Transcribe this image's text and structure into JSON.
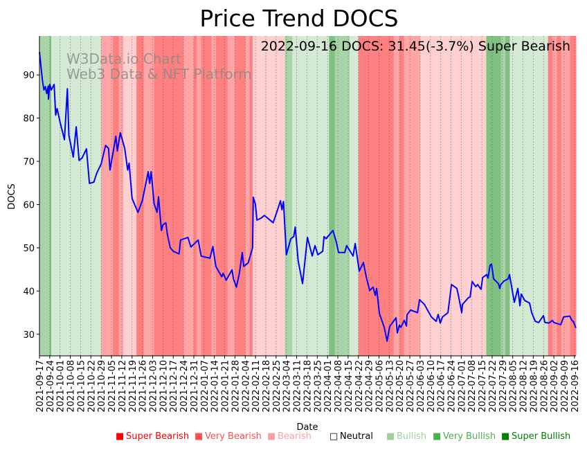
{
  "chart_data": {
    "type": "line",
    "title": "Price Trend DOCS",
    "annotation": "2022-09-16 DOCS: 31.45(-3.7%) Super Bearish",
    "watermark": [
      "W3Data.io Chart",
      "Web3 Data & NFT Platform"
    ],
    "xlabel": "Date",
    "ylabel": "DOCS",
    "ylim": [
      25,
      99
    ],
    "xlim_days": [
      0,
      365
    ],
    "x_start_date": "2021-09-17",
    "yticks": [
      30,
      40,
      50,
      60,
      70,
      80,
      90
    ],
    "xtick_labels": [
      "2021-09-17",
      "2021-09-24",
      "2021-10-01",
      "2021-10-08",
      "2021-10-15",
      "2021-10-22",
      "2021-10-29",
      "2021-11-05",
      "2021-11-12",
      "2021-11-19",
      "2021-11-26",
      "2021-12-03",
      "2021-12-10",
      "2021-12-17",
      "2021-12-24",
      "2021-12-31",
      "2022-01-07",
      "2022-01-14",
      "2022-01-21",
      "2022-01-28",
      "2022-02-04",
      "2022-02-11",
      "2022-02-18",
      "2022-02-25",
      "2022-03-04",
      "2022-03-11",
      "2022-03-18",
      "2022-03-25",
      "2022-04-01",
      "2022-04-08",
      "2022-04-15",
      "2022-04-22",
      "2022-04-29",
      "2022-05-06",
      "2022-05-13",
      "2022-05-20",
      "2022-05-27",
      "2022-06-03",
      "2022-06-10",
      "2022-06-17",
      "2022-06-24",
      "2022-07-01",
      "2022-07-08",
      "2022-07-15",
      "2022-07-22",
      "2022-07-29",
      "2022-08-05",
      "2022-08-12",
      "2022-08-19",
      "2022-08-26",
      "2022-09-02",
      "2022-09-09",
      "2022-09-16"
    ],
    "grid": "vertical-dotted",
    "legend_placement": "bottom",
    "legend": [
      {
        "label": "Super Bearish",
        "symbol": "■",
        "color": "#ff0000"
      },
      {
        "label": "Very Bearish",
        "symbol": "■",
        "color": "#ff5050"
      },
      {
        "label": "Bearish",
        "symbol": "■",
        "color": "#ffa0a0"
      },
      {
        "label": "Neutral",
        "symbol": "□",
        "color": "#000000"
      },
      {
        "label": "Bullish",
        "symbol": "■",
        "color": "#a0d0a0"
      },
      {
        "label": "Very Bullish",
        "symbol": "■",
        "color": "#4caf50"
      },
      {
        "label": "Super Bullish",
        "symbol": "■",
        "color": "#008000"
      }
    ],
    "band_colors": {
      "super_bearish": "#ff8080",
      "very_bearish": "#ffa5a5",
      "bearish": "#ffd0d0",
      "bullish": "#d5ead5",
      "very_bullish": "#a8d5a8",
      "super_bullish": "#80c080"
    },
    "bands": [
      [
        0,
        7,
        "very_bullish"
      ],
      [
        7,
        8,
        "super_bullish"
      ],
      [
        8,
        42,
        "bullish"
      ],
      [
        42,
        50,
        "very_bearish"
      ],
      [
        50,
        54,
        "super_bearish"
      ],
      [
        54,
        57,
        "very_bearish"
      ],
      [
        57,
        66,
        "bearish"
      ],
      [
        66,
        71,
        "super_bearish"
      ],
      [
        71,
        78,
        "very_bearish"
      ],
      [
        78,
        98,
        "super_bearish"
      ],
      [
        98,
        105,
        "very_bearish"
      ],
      [
        105,
        107,
        "super_bearish"
      ],
      [
        107,
        110,
        "very_bearish"
      ],
      [
        110,
        117,
        "super_bearish"
      ],
      [
        117,
        120,
        "very_bearish"
      ],
      [
        120,
        128,
        "super_bearish"
      ],
      [
        128,
        133,
        "very_bearish"
      ],
      [
        133,
        140,
        "super_bearish"
      ],
      [
        140,
        143,
        "very_bearish"
      ],
      [
        143,
        145,
        "super_bearish"
      ],
      [
        145,
        167,
        "bearish"
      ],
      [
        167,
        172,
        "very_bullish"
      ],
      [
        172,
        197,
        "bullish"
      ],
      [
        197,
        201,
        "super_bullish"
      ],
      [
        201,
        211,
        "very_bullish"
      ],
      [
        211,
        217,
        "bullish"
      ],
      [
        217,
        241,
        "super_bearish"
      ],
      [
        241,
        245,
        "very_bearish"
      ],
      [
        245,
        248,
        "super_bearish"
      ],
      [
        248,
        259,
        "very_bearish"
      ],
      [
        259,
        304,
        "bearish"
      ],
      [
        304,
        314,
        "super_bullish"
      ],
      [
        314,
        317,
        "very_bullish"
      ],
      [
        317,
        320,
        "super_bullish"
      ],
      [
        320,
        346,
        "bullish"
      ],
      [
        346,
        349,
        "super_bearish"
      ],
      [
        349,
        352,
        "very_bearish"
      ],
      [
        352,
        355,
        "super_bearish"
      ],
      [
        355,
        361,
        "very_bearish"
      ],
      [
        361,
        365,
        "super_bearish"
      ]
    ],
    "line_color": "#0000ff",
    "series": [
      {
        "name": "DOCS",
        "points": [
          [
            0,
            95.3
          ],
          [
            2,
            88.9
          ],
          [
            3,
            86.5
          ],
          [
            4,
            87.3
          ],
          [
            5,
            85.7
          ],
          [
            6,
            87.4
          ],
          [
            6.1,
            84.4
          ],
          [
            7,
            87.8
          ],
          [
            8,
            86.5
          ],
          [
            10,
            87.8
          ],
          [
            11,
            80.7
          ],
          [
            12,
            82.2
          ],
          [
            14,
            79.1
          ],
          [
            17,
            75
          ],
          [
            19,
            86.8
          ],
          [
            20,
            76
          ],
          [
            23,
            71
          ],
          [
            25,
            78
          ],
          [
            27,
            70.2
          ],
          [
            29,
            70.8
          ],
          [
            32,
            72.9
          ],
          [
            34,
            64.9
          ],
          [
            37,
            65.2
          ],
          [
            39,
            67.3
          ],
          [
            42,
            69.4
          ],
          [
            45,
            73.7
          ],
          [
            47,
            73
          ],
          [
            48,
            68
          ],
          [
            52,
            75.8
          ],
          [
            53,
            72.4
          ],
          [
            55,
            76.6
          ],
          [
            58,
            73
          ],
          [
            60,
            68
          ],
          [
            61,
            69.6
          ],
          [
            63,
            61.4
          ],
          [
            67,
            58.2
          ],
          [
            70,
            60.9
          ],
          [
            74,
            67.6
          ],
          [
            75,
            64.9
          ],
          [
            76,
            67.6
          ],
          [
            78,
            60.2
          ],
          [
            80,
            58.2
          ],
          [
            81,
            61.8
          ],
          [
            83,
            54
          ],
          [
            84,
            55.3
          ],
          [
            86,
            55.8
          ],
          [
            87,
            53.2
          ],
          [
            89,
            50
          ],
          [
            91,
            49.2
          ],
          [
            93,
            48.9
          ],
          [
            95,
            48.6
          ],
          [
            96,
            51.8
          ],
          [
            101,
            52.4
          ],
          [
            103,
            50.2
          ],
          [
            105,
            50.8
          ],
          [
            108,
            51.8
          ],
          [
            110,
            48.1
          ],
          [
            112,
            47.9
          ],
          [
            116,
            47.6
          ],
          [
            118,
            50.3
          ],
          [
            120,
            45.7
          ],
          [
            124,
            43.3
          ],
          [
            125,
            44.1
          ],
          [
            127,
            42.5
          ],
          [
            131,
            44.9
          ],
          [
            132,
            42.8
          ],
          [
            134,
            40.9
          ],
          [
            136,
            44.1
          ],
          [
            138,
            48.9
          ],
          [
            139,
            45.7
          ],
          [
            142,
            46.5
          ],
          [
            145,
            50
          ],
          [
            145.5,
            61.7
          ],
          [
            146.9,
            60.1
          ],
          [
            148,
            56.4
          ],
          [
            151,
            56.9
          ],
          [
            153,
            57.5
          ],
          [
            159,
            55.8
          ],
          [
            162,
            58.8
          ],
          [
            164,
            60.9
          ],
          [
            165,
            58.8
          ],
          [
            166,
            60.7
          ],
          [
            168,
            48.4
          ],
          [
            171,
            52.1
          ],
          [
            173,
            52.6
          ],
          [
            174,
            54.8
          ],
          [
            176,
            47
          ],
          [
            179,
            41.7
          ],
          [
            182.3,
            52.4
          ],
          [
            185.6,
            48.1
          ],
          [
            187.5,
            50.5
          ],
          [
            189.4,
            48.4
          ],
          [
            192.7,
            49.2
          ],
          [
            193.6,
            52.6
          ],
          [
            195,
            52.1
          ],
          [
            199.7,
            54
          ],
          [
            202,
            51.3
          ],
          [
            203.5,
            48.9
          ],
          [
            207.7,
            48.9
          ],
          [
            209,
            50.5
          ],
          [
            213.4,
            48.1
          ],
          [
            214.8,
            51
          ],
          [
            217.6,
            44.6
          ],
          [
            220.4,
            46.6
          ],
          [
            222.3,
            43.3
          ],
          [
            224.7,
            40.1
          ],
          [
            227,
            40.9
          ],
          [
            228.5,
            39
          ],
          [
            229.4,
            40.6
          ],
          [
            231.3,
            34.8
          ],
          [
            234.6,
            31.6
          ],
          [
            236.5,
            28.4
          ],
          [
            238.3,
            31.8
          ],
          [
            242.6,
            33.8
          ],
          [
            243.5,
            30.3
          ],
          [
            244.9,
            32.1
          ],
          [
            245.9,
            31.6
          ],
          [
            248.2,
            33.2
          ],
          [
            249.7,
            31.9
          ],
          [
            250.1,
            34.5
          ],
          [
            252.5,
            35.6
          ],
          [
            257.2,
            35
          ],
          [
            258.6,
            38
          ],
          [
            261.9,
            36.9
          ],
          [
            266.6,
            34
          ],
          [
            269.9,
            33
          ],
          [
            271.3,
            34.6
          ],
          [
            272.7,
            32.6
          ],
          [
            274.2,
            34
          ],
          [
            277.9,
            35
          ],
          [
            280.3,
            41.5
          ],
          [
            284,
            40.6
          ],
          [
            285,
            39.1
          ],
          [
            287.3,
            35
          ],
          [
            287.8,
            36.9
          ],
          [
            292,
            38.5
          ],
          [
            293,
            38.6
          ],
          [
            294.4,
            42.2
          ],
          [
            296.8,
            41
          ],
          [
            298.2,
            41.5
          ],
          [
            299.1,
            41
          ],
          [
            300.5,
            40.4
          ],
          [
            301.5,
            43.1
          ],
          [
            304.3,
            43.8
          ],
          [
            305.2,
            43
          ],
          [
            306.6,
            46
          ],
          [
            307.6,
            46.2
          ],
          [
            309,
            42.8
          ],
          [
            312.3,
            41.7
          ],
          [
            313.2,
            40.6
          ],
          [
            313.7,
            41.4
          ],
          [
            316,
            42.3
          ],
          [
            318.9,
            42.8
          ],
          [
            319.8,
            43.8
          ],
          [
            323.1,
            37.4
          ],
          [
            325.5,
            40.6
          ],
          [
            326.9,
            36.6
          ],
          [
            327.8,
            39.3
          ],
          [
            330.2,
            37.8
          ],
          [
            333.5,
            37.2
          ],
          [
            334.9,
            35
          ],
          [
            337.3,
            33
          ],
          [
            339.6,
            32.7
          ],
          [
            342.9,
            34.3
          ],
          [
            343.9,
            32.7
          ],
          [
            346.7,
            32.6
          ],
          [
            349,
            33.2
          ],
          [
            350,
            32.7
          ],
          [
            354.7,
            32.2
          ],
          [
            356.6,
            34
          ],
          [
            360.8,
            34.2
          ],
          [
            362.2,
            33.2
          ],
          [
            363.2,
            33
          ],
          [
            365,
            31.45
          ]
        ]
      }
    ]
  }
}
